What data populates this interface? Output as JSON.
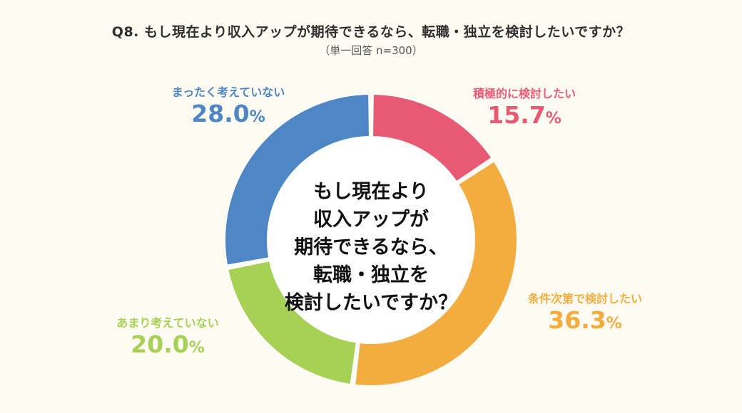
{
  "header": {
    "title": "Q8. もし現在より収入アップが期待できるなら、転職・独立を検討したいですか？",
    "subtitle": "（単一回答 n=300）"
  },
  "center": {
    "lines": [
      "もし現在より",
      "収入アップが",
      "期待できるなら、",
      "転職・独立を",
      "検討したいですか？"
    ]
  },
  "chart_data": {
    "type": "pie",
    "donut": true,
    "categories": [
      "積極的に検討したい",
      "条件次第で検討したい",
      "あまり考えていない",
      "まったく考えていない"
    ],
    "values": [
      15.7,
      36.3,
      20.0,
      28.0
    ],
    "value_labels": [
      "15.7",
      "36.3",
      "20.0",
      "28.0"
    ],
    "unit": "%",
    "colors": [
      "#e85a73",
      "#f2ad3e",
      "#a7d155",
      "#4f86c6"
    ],
    "start": "12 o'clock",
    "direction": "clockwise",
    "legend": "none"
  }
}
